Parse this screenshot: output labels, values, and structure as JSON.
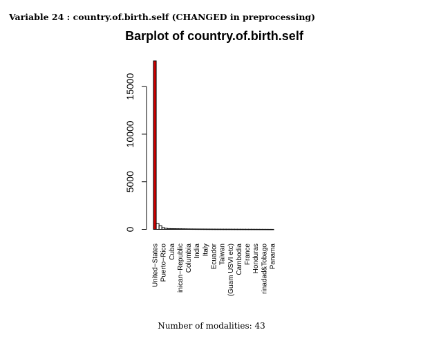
{
  "heading": "Variable 24 :  country.of.birth.self (CHANGED in preprocessing)",
  "footer": "Number of modalities:  43",
  "colors": {
    "first_bar": "#cc0000",
    "other_bars": "#000000"
  },
  "chart_data": {
    "type": "bar",
    "title": "Barplot of country.of.birth.self",
    "xlabel": "",
    "ylabel": "",
    "ylim": [
      0,
      17700
    ],
    "yticks": [
      0,
      5000,
      10000,
      15000
    ],
    "grid": false,
    "visible_tick_labels": [
      "United−States",
      "Puerto−Rico",
      "Cuba",
      "inican−Republic",
      "Columbia",
      "India",
      "Italy",
      "Ecuador",
      "Taiwan",
      "(Guam USVI etc)",
      "Cambodia",
      "France",
      "Honduras",
      "rinadad&Tobago",
      "Panama"
    ],
    "values": [
      17700,
      600,
      380,
      180,
      110,
      80,
      75,
      70,
      65,
      60,
      55,
      50,
      45,
      42,
      40,
      38,
      36,
      34,
      32,
      30,
      28,
      26,
      25,
      24,
      23,
      22,
      21,
      20,
      19,
      18,
      17,
      16,
      15,
      14,
      13,
      12,
      11,
      10,
      9,
      8,
      7,
      6,
      5
    ]
  }
}
